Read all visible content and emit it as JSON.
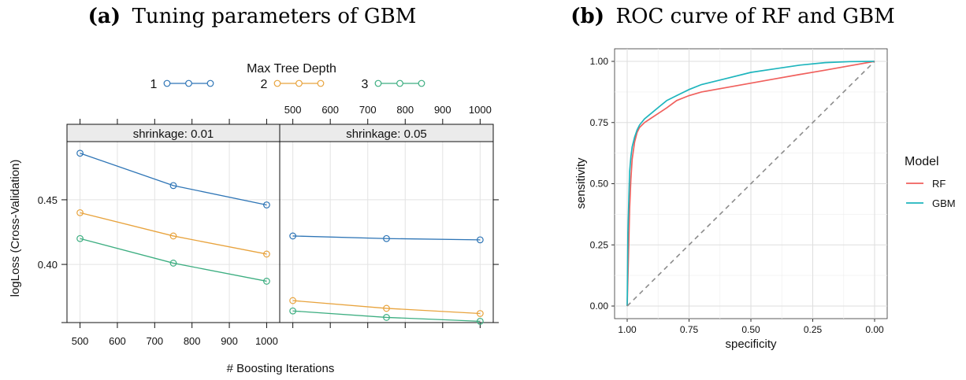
{
  "figure": {
    "panel_a": {
      "caption_label": "(a)",
      "caption_text": "Tuning parameters of GBM"
    },
    "panel_b": {
      "caption_label": "(b)",
      "caption_text": "ROC curve of RF and GBM"
    }
  },
  "colors": {
    "depth1": "#2E75B6",
    "depth2": "#E8A33D",
    "depth3": "#3DAE81",
    "rf": "#F0605D",
    "gbm": "#1EB5BD",
    "diag": "#8C8C8C"
  },
  "chart_data": [
    {
      "type": "line",
      "legend_title": "Max Tree Depth",
      "legend_placement": "top",
      "xlabel": "# Boosting Iterations",
      "ylabel": "logLoss (Cross-Validation)",
      "x": [
        500,
        750,
        1000
      ],
      "x_ticks": [
        500,
        600,
        700,
        800,
        900,
        1000
      ],
      "y_ticks": [
        0.4,
        0.45
      ],
      "y_tick_labels": [
        "0.40",
        "0.45"
      ],
      "xlim": [
        465,
        1035
      ],
      "ylim": [
        0.355,
        0.495
      ],
      "grid": true,
      "panels": [
        {
          "strip": "shrinkage: 0.01",
          "series": [
            {
              "name": "1",
              "values": [
                0.486,
                0.461,
                0.446
              ]
            },
            {
              "name": "2",
              "values": [
                0.44,
                0.422,
                0.408
              ]
            },
            {
              "name": "3",
              "values": [
                0.42,
                0.401,
                0.387
              ]
            }
          ]
        },
        {
          "strip": "shrinkage: 0.05",
          "series": [
            {
              "name": "1",
              "values": [
                0.422,
                0.42,
                0.419
              ]
            },
            {
              "name": "2",
              "values": [
                0.372,
                0.366,
                0.362
              ]
            },
            {
              "name": "3",
              "values": [
                0.364,
                0.359,
                0.356
              ]
            }
          ]
        }
      ]
    },
    {
      "type": "line",
      "xlabel": "specificity",
      "ylabel": "sensitivity",
      "legend_title": "Model",
      "legend_placement": "right",
      "x_reversed": true,
      "xlim": [
        1.0,
        0.0
      ],
      "ylim": [
        0.0,
        1.0
      ],
      "x_ticks": [
        1.0,
        0.75,
        0.5,
        0.25,
        0.0
      ],
      "x_tick_labels": [
        "1.00",
        "0.75",
        "0.50",
        "0.25",
        "0.00"
      ],
      "y_ticks": [
        0.0,
        0.25,
        0.5,
        0.75,
        1.0
      ],
      "y_tick_labels": [
        "0.00",
        "0.25",
        "0.50",
        "0.75",
        "1.00"
      ],
      "grid": true,
      "series": [
        {
          "name": "RF",
          "x": [
            1.0,
            0.995,
            0.99,
            0.985,
            0.98,
            0.97,
            0.96,
            0.95,
            0.93,
            0.9,
            0.87,
            0.84,
            0.8,
            0.75,
            0.7,
            0.6,
            0.5,
            0.4,
            0.3,
            0.2,
            0.1,
            0.0
          ],
          "y": [
            0.0,
            0.2,
            0.4,
            0.52,
            0.6,
            0.67,
            0.71,
            0.73,
            0.75,
            0.77,
            0.79,
            0.81,
            0.84,
            0.86,
            0.875,
            0.893,
            0.911,
            0.929,
            0.947,
            0.964,
            0.982,
            1.0
          ]
        },
        {
          "name": "GBM",
          "x": [
            1.0,
            0.997,
            0.993,
            0.99,
            0.985,
            0.98,
            0.97,
            0.96,
            0.95,
            0.93,
            0.9,
            0.87,
            0.84,
            0.8,
            0.75,
            0.7,
            0.6,
            0.5,
            0.4,
            0.3,
            0.2,
            0.1,
            0.0
          ],
          "y": [
            0.0,
            0.3,
            0.45,
            0.55,
            0.61,
            0.65,
            0.69,
            0.72,
            0.74,
            0.765,
            0.79,
            0.815,
            0.84,
            0.86,
            0.885,
            0.905,
            0.93,
            0.955,
            0.97,
            0.985,
            0.995,
            0.999,
            1.0
          ]
        },
        {
          "name": "",
          "x": [
            1.0,
            0.0
          ],
          "y": [
            0.0,
            1.0
          ]
        }
      ]
    }
  ]
}
